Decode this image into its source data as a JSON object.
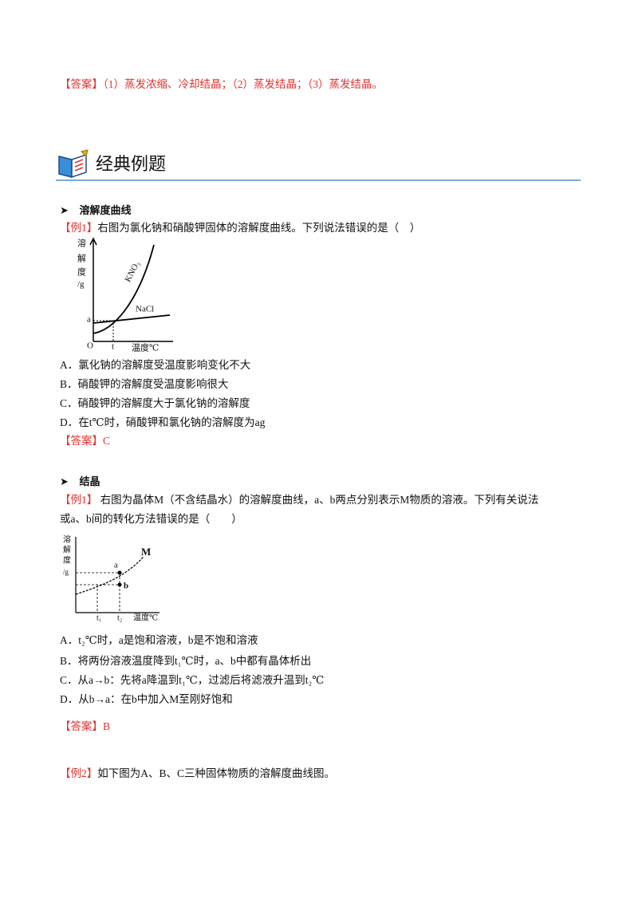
{
  "answer_top": {
    "label": "【答案】",
    "text": "（1）蒸发浓缩、冷却结晶；（2）蒸发结晶；（3）蒸发结晶。"
  },
  "section": {
    "title": "经典例题"
  },
  "topics": [
    {
      "heading": "溶解度曲线",
      "examples": [
        {
          "tag": "【例1】",
          "question": "右图为氯化钠和硝酸钾固体的溶解度曲线。下列说法错误的是（　）",
          "figure": {
            "y_label": [
              "溶",
              "解",
              "度",
              "/g"
            ],
            "curve1": "KNO₃",
            "curve2": "NaCl",
            "point": "a",
            "origin": "O",
            "x_tick": "t",
            "x_label": "温度℃"
          },
          "options": [
            "A．氯化钠的溶解度受温度影响变化不大",
            "B．硝酸钾的溶解度受温度影响很大",
            "C．硝酸钾的溶解度大于氯化钠的溶解度",
            "D．在t℃时，硝酸钾和氯化钠的溶解度为ag"
          ],
          "answer": {
            "label": "【答案】",
            "text": "C"
          }
        }
      ]
    },
    {
      "heading": "结晶",
      "examples": [
        {
          "tag": "【例1】",
          "question": "右图为晶体M（不含结晶水）的溶解度曲线，a、b两点分别表示M物质的溶液。下列有关说法",
          "question_cont": "或a、b间的转化方法错误的是（　　）",
          "figure": {
            "y_label": [
              "溶",
              "解",
              "度",
              "/g"
            ],
            "curve": "M",
            "point_a": "a",
            "point_b": "b",
            "x_tick1": "t₁",
            "x_tick2": "t₂",
            "x_label": "温度℃"
          },
          "options": [
            "A．t₂℃时，a是饱和溶液，b是不饱和溶液",
            "B．将两份溶液温度降到t₁℃时，a、b中都有晶体析出",
            "C．从a→b：先将a降温到t₁℃，过滤后将滤液升温到t₂℃",
            "D．从b→a：在b中加入M至刚好饱和"
          ],
          "answer": {
            "label": "【答案】",
            "text": "B"
          }
        },
        {
          "tag": "【例2】",
          "question": "如下图为A、B、C三种固体物质的溶解度曲线图。"
        }
      ]
    }
  ]
}
